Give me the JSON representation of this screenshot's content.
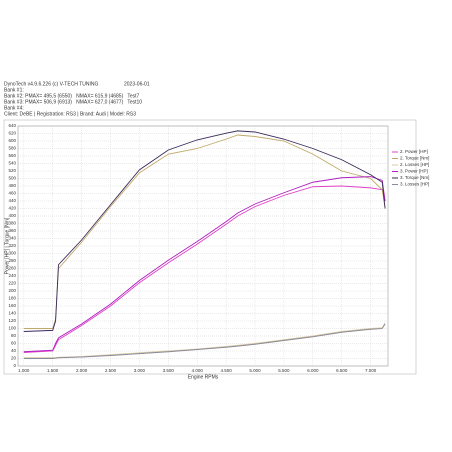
{
  "header": {
    "software": "DynoTech v4.9.6.226 (c) V-TECH TUNING",
    "date": "2023-06-01",
    "lines": [
      "Bank #1:",
      "Bank #2: PMAX= 495,5 (6550)   NMAX= 615,9 (4685)   Test7",
      "Bank #3: PMAX= 506,9 (6913)   NMAX= 627,0 (4677)   Test10",
      "Bank #4:",
      "Client: DeBE | Registration: RS3 | Brand: Audi | Model: RS3"
    ]
  },
  "chart_data": {
    "type": "line",
    "x_label": "Engine RPMs",
    "y_label": "Power [HP] | Torque [Nm]",
    "x": [
      1000,
      1500,
      1550,
      1600,
      2000,
      2500,
      3000,
      3500,
      4000,
      4500,
      4700,
      5000,
      5500,
      6000,
      6500,
      7000,
      7200,
      7250
    ],
    "series": [
      {
        "name": "2. Power [HP]",
        "color": "#e040c8",
        "values": [
          36,
          40,
          55,
          70,
          108,
          160,
          222,
          275,
          325,
          378,
          400,
          425,
          455,
          478,
          480,
          475,
          470,
          440
        ]
      },
      {
        "name": "2. Torque [Nm]",
        "color": "#c0a868",
        "values": [
          100,
          100,
          125,
          260,
          330,
          425,
          515,
          565,
          580,
          605,
          616,
          612,
          600,
          565,
          520,
          500,
          470,
          420
        ]
      },
      {
        "name": "2. Losses [HP]",
        "color": "#d8c8a0",
        "values": [
          22,
          22,
          22,
          23,
          25,
          30,
          35,
          40,
          45,
          52,
          55,
          60,
          70,
          80,
          92,
          100,
          102,
          115
        ]
      },
      {
        "name": "3. Power [HP]",
        "color": "#b020c0",
        "values": [
          38,
          42,
          60,
          75,
          112,
          165,
          228,
          282,
          332,
          385,
          408,
          432,
          462,
          490,
          502,
          505,
          495,
          440
        ]
      },
      {
        "name": "3. Torque [Nm]",
        "color": "#3a2a5a",
        "values": [
          92,
          95,
          120,
          270,
          336,
          430,
          523,
          576,
          603,
          621,
          627,
          624,
          605,
          580,
          550,
          510,
          490,
          420
        ]
      },
      {
        "name": "3. Losses [HP]",
        "color": "#8a8a9a",
        "values": [
          20,
          20,
          21,
          22,
          24,
          28,
          33,
          38,
          44,
          50,
          53,
          58,
          68,
          78,
          90,
          98,
          100,
          112
        ]
      }
    ],
    "xlim": [
      900,
      7300
    ],
    "xticks": [
      {
        "value": 1000,
        "label": "1.000"
      },
      {
        "value": 1500,
        "label": "1.500"
      },
      {
        "value": 2000,
        "label": "2.000"
      },
      {
        "value": 2500,
        "label": "2.500"
      },
      {
        "value": 3000,
        "label": "3.000"
      },
      {
        "value": 3500,
        "label": "3.500"
      },
      {
        "value": 4000,
        "label": "4.000"
      },
      {
        "value": 4500,
        "label": "4.500"
      },
      {
        "value": 5000,
        "label": "5.000"
      },
      {
        "value": 5500,
        "label": "5.500"
      },
      {
        "value": 6000,
        "label": "6.000"
      },
      {
        "value": 6500,
        "label": "6.500"
      },
      {
        "value": 7000,
        "label": "7.000"
      }
    ],
    "ylim": [
      0,
      640
    ],
    "yticks": [
      0,
      20,
      40,
      60,
      80,
      100,
      120,
      140,
      160,
      180,
      200,
      220,
      240,
      260,
      280,
      300,
      320,
      340,
      360,
      380,
      400,
      420,
      440,
      460,
      480,
      500,
      520,
      540,
      560,
      580,
      600,
      620,
      640
    ],
    "grid": true
  }
}
